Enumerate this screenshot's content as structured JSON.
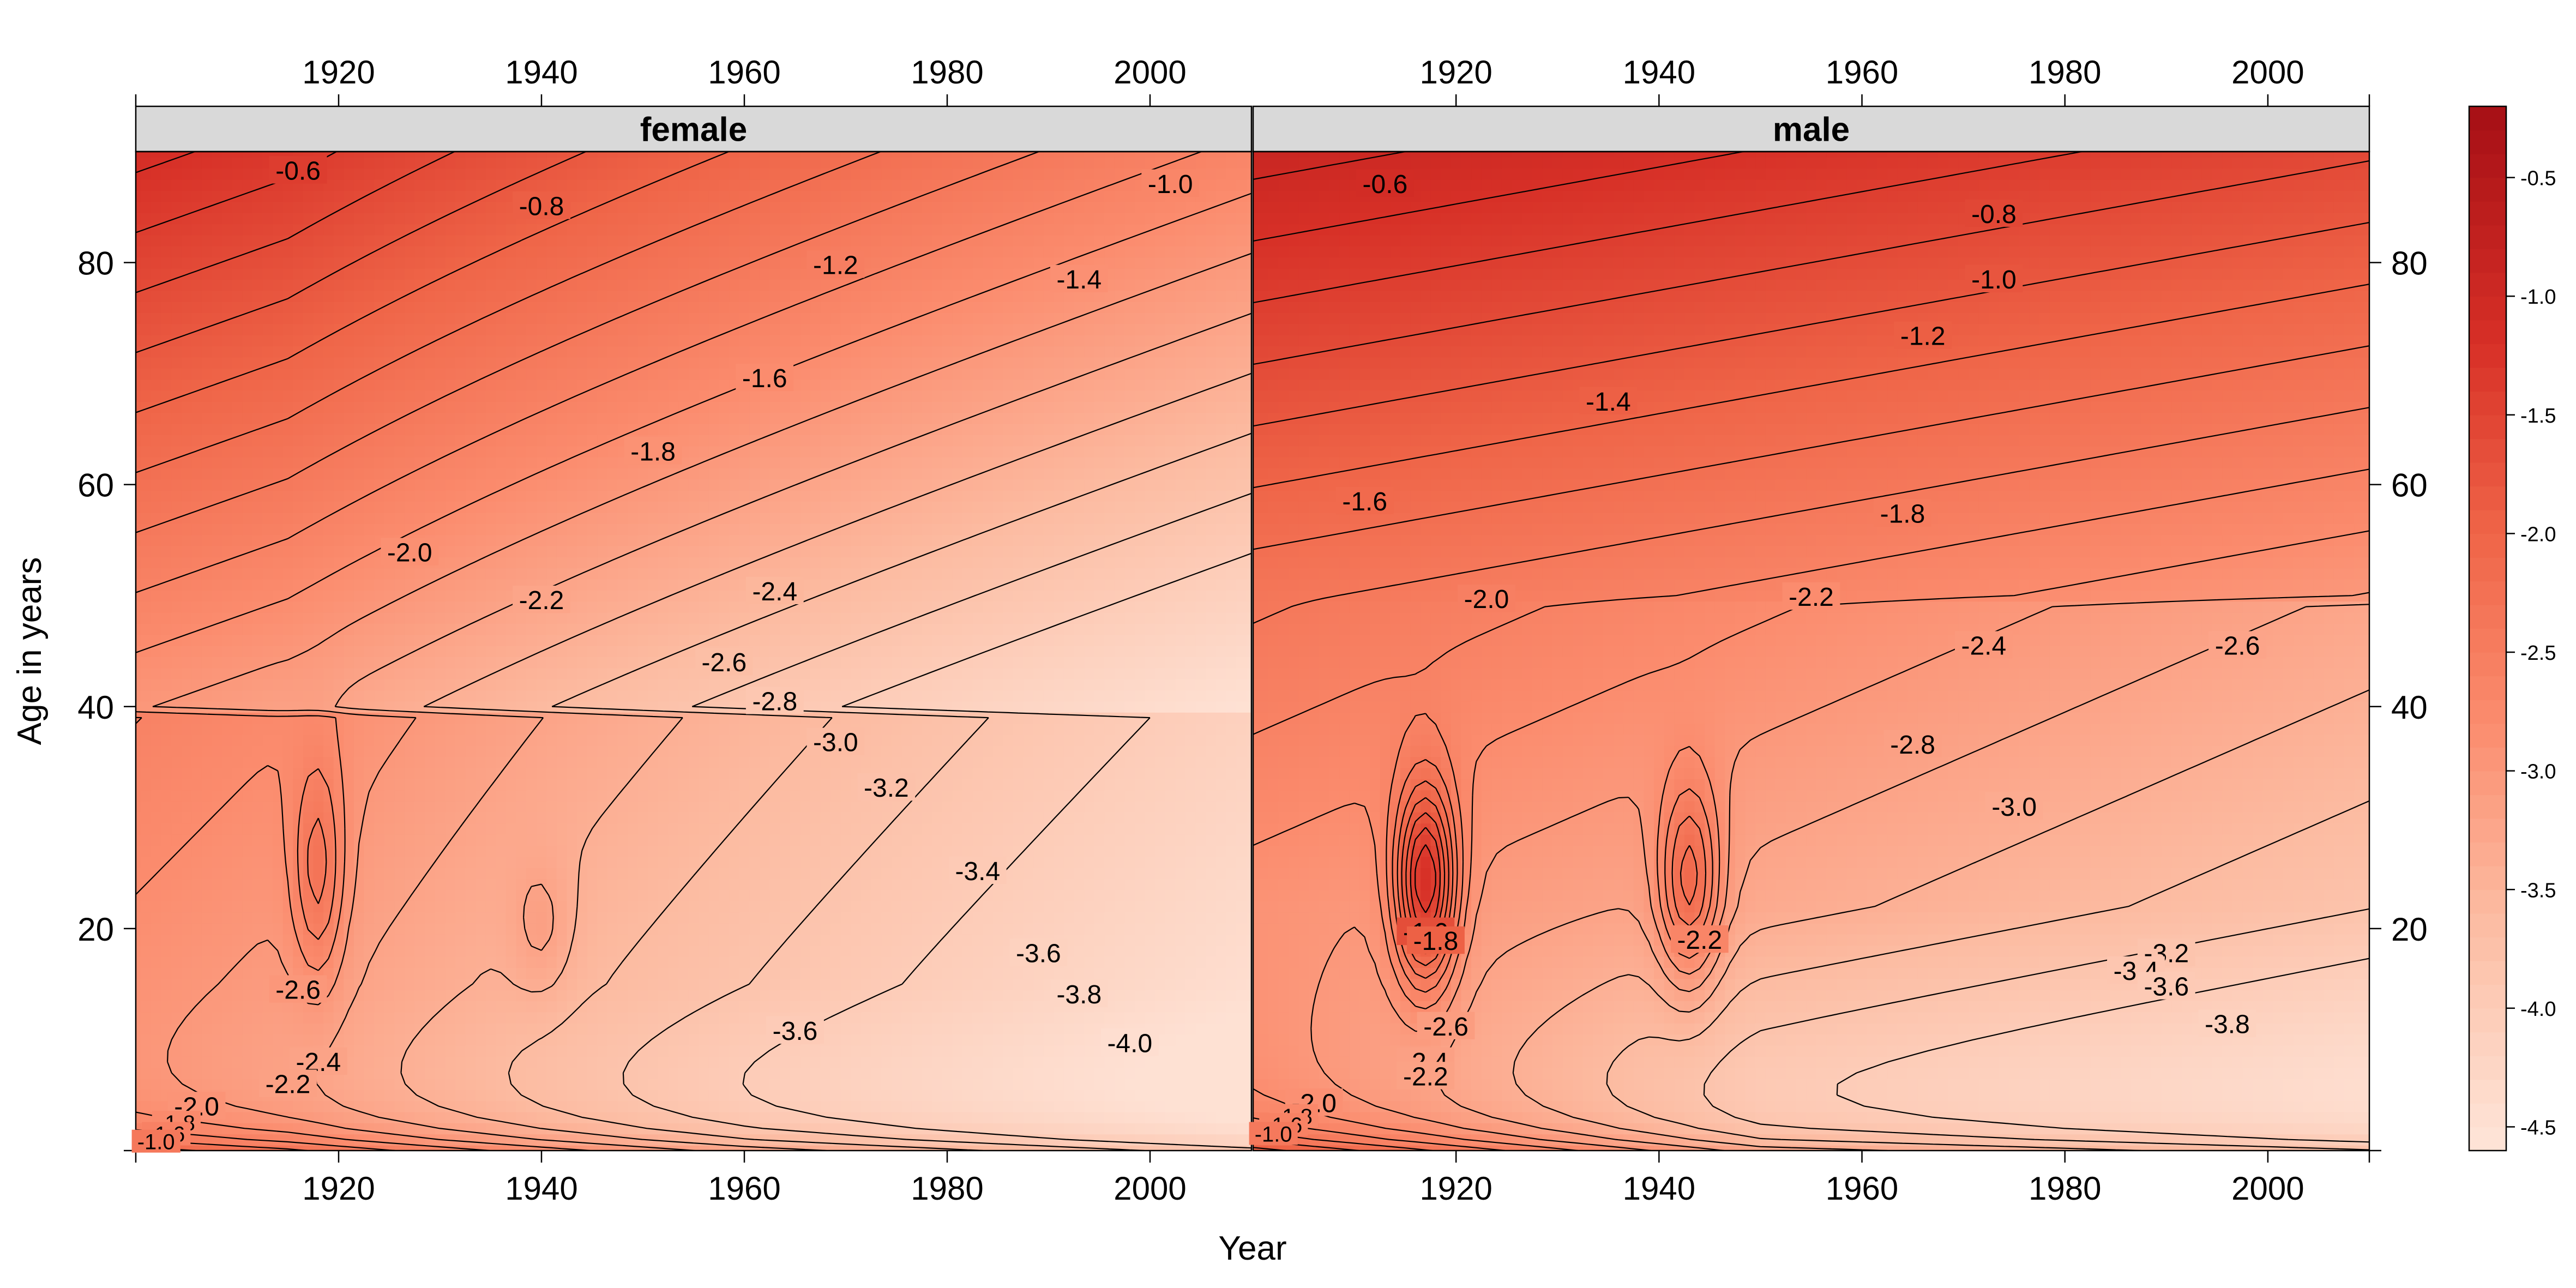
{
  "chart_data": {
    "type": "heatmap",
    "xlabel": "Year",
    "ylabel": "Age in years",
    "xlim": [
      1900,
      2010
    ],
    "ylim": [
      0,
      90
    ],
    "x_ticks": [
      1920,
      1940,
      1960,
      1980,
      2000
    ],
    "y_ticks": [
      20,
      40,
      60,
      80
    ],
    "colorbar": {
      "min": -4.6,
      "max": -0.2,
      "ticks": [
        -0.5,
        -1.0,
        -1.5,
        -2.0,
        -2.5,
        -3.0,
        -3.5,
        -4.0,
        -4.5
      ],
      "tick_labels": [
        "-0.5",
        "-1.0",
        "-1.5",
        "-2.0",
        "-2.5",
        "-3.0",
        "-3.5",
        "-4.0",
        "-4.5"
      ],
      "color_low": "#fee5d9",
      "color_mid": "#ef6548",
      "color_high": "#a50f15"
    },
    "contour_levels": [
      -0.6,
      -0.8,
      -1.0,
      -1.2,
      -1.4,
      -1.6,
      -1.8,
      -2.0,
      -2.2,
      -2.4,
      -2.6,
      -2.8,
      -3.0,
      -3.2,
      -3.4,
      -3.6,
      -3.8,
      -4.0
    ],
    "panels": [
      {
        "name": "female",
        "contour_labels": [
          {
            "text": "-0.6",
            "year": 1916,
            "age": 88.3
          },
          {
            "text": "-0.8",
            "year": 1940,
            "age": 85.1
          },
          {
            "text": "-1.0",
            "year": 2002,
            "age": 87.1
          },
          {
            "text": "-1.2",
            "year": 1969,
            "age": 79.8
          },
          {
            "text": "-1.4",
            "year": 1993,
            "age": 78.5
          },
          {
            "text": "-1.6",
            "year": 1962,
            "age": 69.6
          },
          {
            "text": "-1.8",
            "year": 1951,
            "age": 63.0
          },
          {
            "text": "-2.0",
            "year": 1927,
            "age": 53.9
          },
          {
            "text": "-2.2",
            "year": 1940,
            "age": 49.6
          },
          {
            "text": "-2.4",
            "year": 1963,
            "age": 50.4
          },
          {
            "text": "-2.6",
            "year": 1958,
            "age": 44.0
          },
          {
            "text": "-2.8",
            "year": 1963,
            "age": 40.5
          },
          {
            "text": "-3.0",
            "year": 1969,
            "age": 36.8
          },
          {
            "text": "-3.2",
            "year": 1974,
            "age": 32.7
          },
          {
            "text": "-3.4",
            "year": 1983,
            "age": 25.2
          },
          {
            "text": "-3.6",
            "year": 1989,
            "age": 17.8
          },
          {
            "text": "-3.6",
            "year": 1965,
            "age": 10.8
          },
          {
            "text": "-3.8",
            "year": 1993,
            "age": 14.1
          },
          {
            "text": "-4.0",
            "year": 1998,
            "age": 9.7
          },
          {
            "text": "-2.6",
            "year": 1916,
            "age": 14.5
          },
          {
            "text": "-2.4",
            "year": 1918,
            "age": 8.0
          },
          {
            "text": "-2.2",
            "year": 1915,
            "age": 6.0
          },
          {
            "text": "-2.0",
            "year": 1906,
            "age": 4.0
          },
          {
            "text": "-1.8",
            "year": 1904,
            "age": 2.5
          },
          {
            "text": "-1.6",
            "year": 1903,
            "age": 1.5
          },
          {
            "text": "-1.0",
            "year": 1902,
            "age": 0.8
          }
        ]
      },
      {
        "name": "male",
        "contour_labels": [
          {
            "text": "-0.6",
            "year": 1913,
            "age": 87.1
          },
          {
            "text": "-0.8",
            "year": 1973,
            "age": 84.4
          },
          {
            "text": "-1.0",
            "year": 1973,
            "age": 78.5
          },
          {
            "text": "-1.2",
            "year": 1966,
            "age": 73.4
          },
          {
            "text": "-1.4",
            "year": 1935,
            "age": 67.5
          },
          {
            "text": "-1.6",
            "year": 1911,
            "age": 58.5
          },
          {
            "text": "-1.8",
            "year": 1964,
            "age": 57.4
          },
          {
            "text": "-2.0",
            "year": 1923,
            "age": 49.7
          },
          {
            "text": "-2.2",
            "year": 1955,
            "age": 49.9
          },
          {
            "text": "-2.4",
            "year": 1972,
            "age": 45.5
          },
          {
            "text": "-2.6",
            "year": 1997,
            "age": 45.5
          },
          {
            "text": "-2.8",
            "year": 1965,
            "age": 36.6
          },
          {
            "text": "-3.0",
            "year": 1975,
            "age": 31.0
          },
          {
            "text": "-3.2",
            "year": 1990,
            "age": 17.8
          },
          {
            "text": "-3.4",
            "year": 1987,
            "age": 16.2
          },
          {
            "text": "-3.6",
            "year": 1990,
            "age": 14.8
          },
          {
            "text": "-3.8",
            "year": 1996,
            "age": 11.4
          },
          {
            "text": "-1.6",
            "year": 1917,
            "age": 19.7
          },
          {
            "text": "-1.8",
            "year": 1918,
            "age": 18.9
          },
          {
            "text": "-2.2",
            "year": 1944,
            "age": 19.0
          },
          {
            "text": "-2.6",
            "year": 1919,
            "age": 11.2
          },
          {
            "text": "-2.4",
            "year": 1917,
            "age": 8.0
          },
          {
            "text": "-2.2",
            "year": 1917,
            "age": 6.7
          },
          {
            "text": "-2.0",
            "year": 1906,
            "age": 4.3
          },
          {
            "text": "-1.8",
            "year": 1904,
            "age": 3.1
          },
          {
            "text": "-1.6",
            "year": 1903,
            "age": 2.3
          },
          {
            "text": "-1.0",
            "year": 1902,
            "age": 1.5
          }
        ]
      }
    ]
  }
}
